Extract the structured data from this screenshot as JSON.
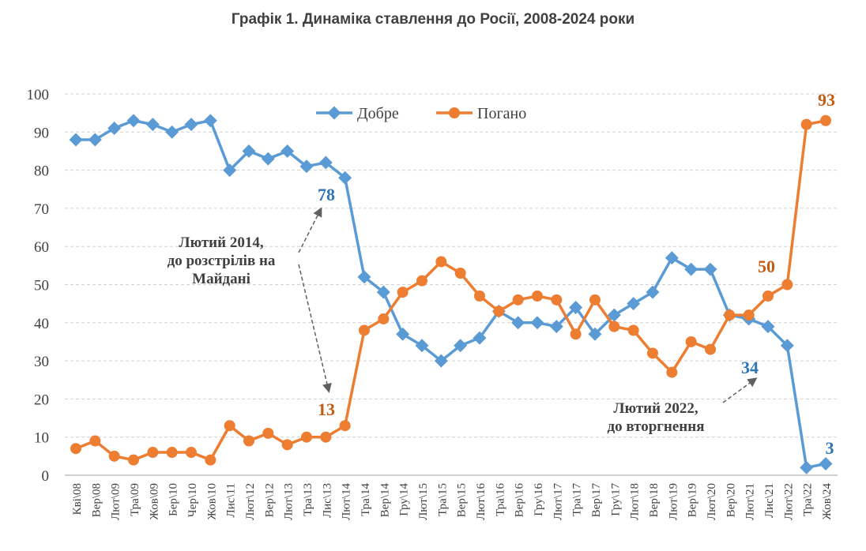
{
  "chart_data": {
    "type": "line",
    "title": "Графік 1. Динаміка ставлення до Росії, 2008-2024 роки",
    "ylim": [
      0,
      100
    ],
    "yticks": [
      0,
      10,
      20,
      30,
      40,
      50,
      60,
      70,
      80,
      90,
      100
    ],
    "grid": true,
    "legend_position": "top-center",
    "categories": [
      "Кві\\08",
      "Вер\\08",
      "Лют\\09",
      "Тра\\09",
      "Жов\\09",
      "Бер\\10",
      "Чер\\10",
      "Жов\\10",
      "Лис\\11",
      "Лют\\12",
      "Вер\\12",
      "Лют\\13",
      "Тра\\13",
      "Лис\\13",
      "Лют\\14",
      "Тра\\14",
      "Вер\\14",
      "Гру\\14",
      "Лют\\15",
      "Тра\\15",
      "Вер\\15",
      "Лют\\16",
      "Тра\\16",
      "Вер\\16",
      "Гру\\16",
      "Лют\\17",
      "Тра\\17",
      "Вер\\17",
      "Гру\\17",
      "Лют\\18",
      "Вер\\18",
      "Лют\\19",
      "Вер\\19",
      "Лют\\20",
      "Вер\\20",
      "Лют\\21",
      "Лис\\21",
      "Лют\\22",
      "Тра\\22",
      "Жов\\24"
    ],
    "series": [
      {
        "name": "Добре",
        "color": "#5b9bd5",
        "marker": "diamond",
        "values": [
          88,
          88,
          91,
          93,
          92,
          90,
          92,
          93,
          80,
          85,
          83,
          85,
          81,
          82,
          78,
          52,
          48,
          37,
          34,
          30,
          34,
          36,
          43,
          40,
          40,
          39,
          44,
          37,
          42,
          45,
          48,
          57,
          54,
          54,
          42,
          41,
          39,
          34,
          2,
          3
        ]
      },
      {
        "name": "Погано",
        "color": "#ed7d31",
        "marker": "circle",
        "values": [
          7,
          9,
          5,
          4,
          6,
          6,
          6,
          4,
          13,
          9,
          11,
          8,
          10,
          10,
          13,
          38,
          41,
          48,
          51,
          56,
          53,
          47,
          43,
          46,
          47,
          46,
          37,
          46,
          39,
          38,
          32,
          27,
          35,
          33,
          42,
          42,
          47,
          50,
          92,
          93
        ]
      }
    ],
    "data_labels": [
      {
        "text": "78",
        "series": 0,
        "color": "#2e75b6"
      },
      {
        "text": "13",
        "series": 1,
        "color": "#c55a11"
      },
      {
        "text": "50",
        "series": 1,
        "color": "#c55a11"
      },
      {
        "text": "93",
        "series": 1,
        "color": "#c55a11"
      },
      {
        "text": "34",
        "series": 0,
        "color": "#2e75b6"
      },
      {
        "text": "3",
        "series": 0,
        "color": "#2e75b6"
      }
    ],
    "annotations": [
      {
        "lines": [
          "Лютий 2014,",
          "до розстрілів на",
          "Майдані"
        ]
      },
      {
        "lines": [
          "Лютий 2022,",
          "до вторгнення"
        ]
      }
    ]
  }
}
